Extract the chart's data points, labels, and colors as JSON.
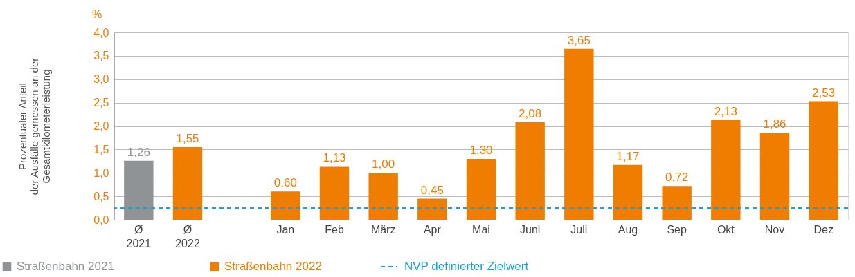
{
  "chart_data": {
    "type": "bar",
    "ylabel": "Prozentualer Anteil\nder Ausfälle gemessen an der\nGesamtkilometerleistung",
    "annotations": [
      "%"
    ],
    "categories": [
      "Ø\n2021",
      "Ø\n2022",
      null,
      "Jan",
      "Feb",
      "März",
      "Apr",
      "Mai",
      "Juni",
      "Juli",
      "Aug",
      "Sep",
      "Okt",
      "Nov",
      "Dez"
    ],
    "series": [
      {
        "name": "Straßenbahn 2021",
        "color": "#8f9396",
        "values": [
          1.26,
          null,
          null,
          null,
          null,
          null,
          null,
          null,
          null,
          null,
          null,
          null,
          null,
          null,
          null
        ],
        "value_labels": [
          "1,26",
          null,
          null,
          null,
          null,
          null,
          null,
          null,
          null,
          null,
          null,
          null,
          null,
          null,
          null
        ]
      },
      {
        "name": "Straßenbahn 2022",
        "color": "#ef7d00",
        "values": [
          null,
          1.55,
          null,
          0.6,
          1.13,
          1.0,
          0.45,
          1.3,
          2.08,
          3.65,
          1.17,
          0.72,
          2.13,
          1.86,
          2.53
        ],
        "value_labels": [
          null,
          "1,55",
          null,
          "0,60",
          "1,13",
          "1,00",
          "0,45",
          "1,30",
          "2,08",
          "3,65",
          "1,17",
          "0,72",
          "2,13",
          "1,86",
          "2,53"
        ]
      }
    ],
    "ylim": [
      0,
      4
    ],
    "yticks": [
      {
        "value": 0,
        "label": "0,0"
      },
      {
        "value": 0.5,
        "label": "0,5"
      },
      {
        "value": 1,
        "label": "1,0"
      },
      {
        "value": 1.5,
        "label": "1,5"
      },
      {
        "value": 2,
        "label": "2,0"
      },
      {
        "value": 2.5,
        "label": "2,5"
      },
      {
        "value": 3,
        "label": "3,0"
      },
      {
        "value": 3.5,
        "label": "3,5"
      },
      {
        "value": 4,
        "label": "4,0"
      }
    ],
    "ref_lines": [
      {
        "axis": "y",
        "value": 0.25,
        "label": "NVP definierter Zielwert",
        "color": "#1a9fd9",
        "line_style": "dashed"
      }
    ],
    "grid": "y",
    "legend": "bottom left"
  }
}
